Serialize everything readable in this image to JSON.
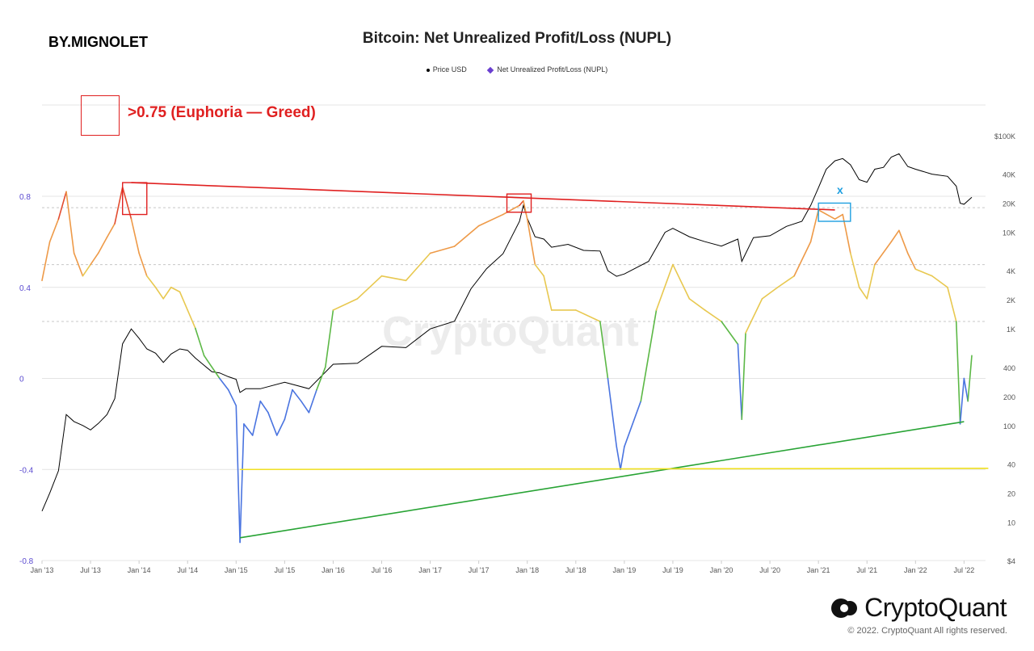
{
  "header": {
    "author": "BY.MIGNOLET",
    "title": "Bitcoin: Net Unrealized Profit/Loss (NUPL)"
  },
  "legend": {
    "price": "Price USD",
    "nupl": "Net Unrealized Profit/Loss (NUPL)"
  },
  "annotations": {
    "euphoria_label": ">0.75 (Euphoria — Greed)",
    "x_marker": "x"
  },
  "watermark": "CryptoQuant",
  "brand": {
    "name": "CryptoQuant",
    "copyright": "© 2022. CryptoQuant All rights reserved."
  },
  "colors": {
    "price_line": "#000000",
    "nupl_blue": "#4a74e0",
    "nupl_green": "#5cb846",
    "nupl_yellow": "#e8c850",
    "nupl_orange": "#ee9a48",
    "nupl_red": "#e24c30",
    "trend_red": "#e02020",
    "trend_green": "#27a334",
    "trend_yellow": "#f0e020",
    "highlight_blue": "#1e9fe0",
    "left_axis": "#5b4bd0",
    "grid": "#e4e4e4",
    "dashed": "#c8c8c8"
  },
  "chart_data": {
    "type": "line",
    "title": "Bitcoin: Net Unrealized Profit/Loss (NUPL)",
    "x_ticks": [
      "Jan '13",
      "Jul '13",
      "Jan '14",
      "Jul '14",
      "Jan '15",
      "Jul '15",
      "Jan '16",
      "Jul '16",
      "Jan '17",
      "Jul '17",
      "Jan '18",
      "Jul '18",
      "Jan '19",
      "Jul '19",
      "Jan '20",
      "Jul '20",
      "Jan '21",
      "Jul '21",
      "Jan '22",
      "Jul '22"
    ],
    "y_left": {
      "label": "NUPL",
      "ticks": [
        "0.8",
        "0.4",
        "0",
        "-0.4",
        "-0.8"
      ],
      "ylim": [
        -0.8,
        0.95
      ]
    },
    "y_right": {
      "label": "Price USD",
      "scale": "log",
      "ticks": [
        "$100K",
        "40K",
        "20K",
        "10K",
        "4K",
        "2K",
        "1K",
        "400",
        "200",
        "100",
        "40",
        "20",
        "10",
        "$4"
      ],
      "ylim": [
        4,
        200000
      ]
    },
    "dashed_levels": [
      0.75,
      0.5,
      0.25
    ],
    "series": [
      {
        "name": "Price USD",
        "axis": "right",
        "x": [
          2013.0,
          2013.08,
          2013.17,
          2013.25,
          2013.33,
          2013.42,
          2013.5,
          2013.58,
          2013.67,
          2013.75,
          2013.83,
          2013.92,
          2014.0,
          2014.08,
          2014.17,
          2014.25,
          2014.33,
          2014.42,
          2014.5,
          2014.58,
          2014.67,
          2014.75,
          2014.83,
          2014.92,
          2015.0,
          2015.04,
          2015.1,
          2015.25,
          2015.5,
          2015.75,
          2016.0,
          2016.25,
          2016.5,
          2016.75,
          2017.0,
          2017.25,
          2017.42,
          2017.58,
          2017.75,
          2017.92,
          2017.96,
          2018.0,
          2018.08,
          2018.17,
          2018.25,
          2018.42,
          2018.58,
          2018.75,
          2018.83,
          2018.92,
          2019.0,
          2019.25,
          2019.42,
          2019.5,
          2019.67,
          2019.83,
          2020.0,
          2020.17,
          2020.21,
          2020.33,
          2020.5,
          2020.67,
          2020.83,
          2020.92,
          2021.0,
          2021.08,
          2021.17,
          2021.25,
          2021.33,
          2021.42,
          2021.5,
          2021.58,
          2021.67,
          2021.75,
          2021.83,
          2021.92,
          2022.0,
          2022.17,
          2022.33,
          2022.42,
          2022.46,
          2022.5,
          2022.58
        ],
        "y": [
          13,
          20,
          34,
          130,
          110,
          100,
          90,
          105,
          130,
          190,
          700,
          1000,
          800,
          620,
          560,
          450,
          550,
          620,
          600,
          500,
          420,
          360,
          350,
          320,
          300,
          220,
          240,
          240,
          280,
          240,
          430,
          440,
          660,
          640,
          1000,
          1200,
          2600,
          4200,
          6000,
          13000,
          19000,
          14000,
          9000,
          8500,
          7000,
          7500,
          6500,
          6400,
          4000,
          3500,
          3700,
          5000,
          10000,
          11000,
          9000,
          8000,
          7200,
          8500,
          5000,
          8800,
          9200,
          11500,
          13000,
          19000,
          29000,
          45000,
          55000,
          58000,
          50000,
          35000,
          33000,
          45000,
          47000,
          60000,
          65000,
          48000,
          45000,
          40000,
          38000,
          30000,
          20000,
          19500,
          23000
        ]
      },
      {
        "name": "Net Unrealized Profit/Loss (NUPL)",
        "axis": "left",
        "x": [
          2013.0,
          2013.08,
          2013.17,
          2013.25,
          2013.33,
          2013.42,
          2013.5,
          2013.58,
          2013.67,
          2013.75,
          2013.83,
          2013.92,
          2014.0,
          2014.08,
          2014.17,
          2014.25,
          2014.33,
          2014.42,
          2014.5,
          2014.58,
          2014.67,
          2014.75,
          2014.83,
          2014.92,
          2015.0,
          2015.04,
          2015.08,
          2015.17,
          2015.25,
          2015.33,
          2015.42,
          2015.5,
          2015.58,
          2015.67,
          2015.75,
          2015.83,
          2015.92,
          2016.0,
          2016.25,
          2016.5,
          2016.75,
          2017.0,
          2017.25,
          2017.5,
          2017.75,
          2017.92,
          2017.96,
          2018.0,
          2018.08,
          2018.17,
          2018.25,
          2018.5,
          2018.75,
          2018.83,
          2018.92,
          2018.96,
          2019.0,
          2019.17,
          2019.33,
          2019.5,
          2019.67,
          2019.83,
          2020.0,
          2020.17,
          2020.21,
          2020.25,
          2020.42,
          2020.58,
          2020.75,
          2020.92,
          2021.0,
          2021.17,
          2021.25,
          2021.33,
          2021.42,
          2021.5,
          2021.58,
          2021.75,
          2021.83,
          2021.92,
          2022.0,
          2022.17,
          2022.33,
          2022.42,
          2022.46,
          2022.5,
          2022.54,
          2022.58
        ],
        "y": [
          0.43,
          0.6,
          0.7,
          0.82,
          0.55,
          0.45,
          0.5,
          0.55,
          0.62,
          0.68,
          0.84,
          0.7,
          0.55,
          0.45,
          0.4,
          0.35,
          0.4,
          0.38,
          0.3,
          0.22,
          0.1,
          0.05,
          0.0,
          -0.05,
          -0.12,
          -0.72,
          -0.2,
          -0.25,
          -0.1,
          -0.15,
          -0.25,
          -0.18,
          -0.05,
          -0.1,
          -0.15,
          -0.05,
          0.05,
          0.3,
          0.35,
          0.45,
          0.43,
          0.55,
          0.58,
          0.67,
          0.72,
          0.76,
          0.78,
          0.7,
          0.5,
          0.45,
          0.3,
          0.3,
          0.25,
          0.0,
          -0.3,
          -0.4,
          -0.3,
          -0.1,
          0.3,
          0.5,
          0.35,
          0.3,
          0.25,
          0.15,
          -0.18,
          0.2,
          0.35,
          0.4,
          0.45,
          0.6,
          0.74,
          0.7,
          0.72,
          0.55,
          0.4,
          0.35,
          0.5,
          0.6,
          0.65,
          0.55,
          0.48,
          0.45,
          0.4,
          0.25,
          -0.2,
          0.0,
          -0.1,
          0.1
        ]
      }
    ],
    "trendlines": [
      {
        "name": "red-resistance",
        "x": [
          2013.92,
          2021.17
        ],
        "y": [
          0.86,
          0.74
        ]
      },
      {
        "name": "green-support",
        "x": [
          2015.04,
          2022.5
        ],
        "y": [
          -0.7,
          -0.19
        ]
      },
      {
        "name": "yellow-level",
        "x": [
          2015.04,
          2022.75
        ],
        "y": [
          -0.4,
          -0.395
        ]
      }
    ],
    "highlight_boxes": [
      {
        "color": "red",
        "x": [
          2013.83,
          2014.08
        ],
        "y": [
          0.72,
          0.86
        ]
      },
      {
        "color": "red",
        "x": [
          2017.79,
          2018.04
        ],
        "y": [
          0.73,
          0.81
        ]
      },
      {
        "color": "blue",
        "x": [
          2021.0,
          2021.33
        ],
        "y": [
          0.69,
          0.77
        ]
      }
    ]
  }
}
